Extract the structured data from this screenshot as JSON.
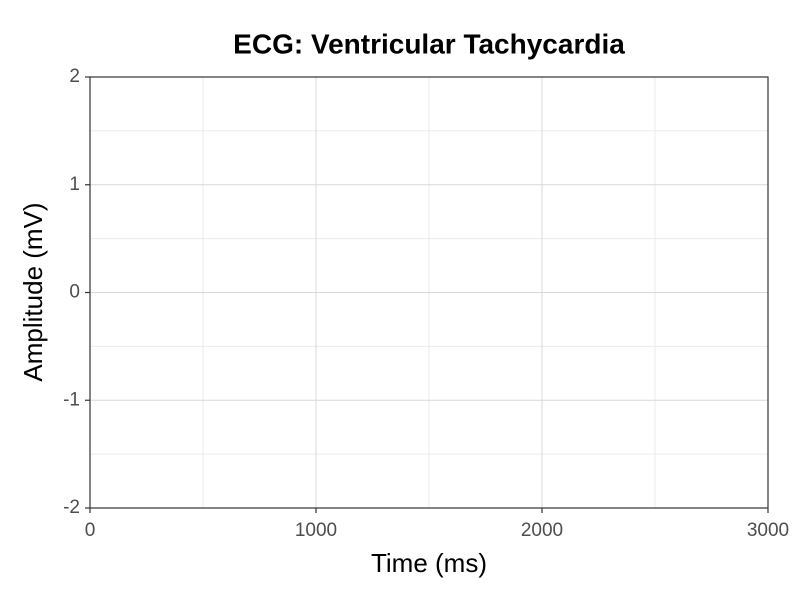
{
  "chart_data": {
    "type": "line",
    "title": "ECG: Ventricular Tachycardia",
    "x_label": "Time (ms)",
    "y_label": "Amplitude (mV)",
    "xlim": [
      0,
      3000
    ],
    "xticks": [
      0,
      1000,
      2000,
      3000
    ],
    "ylim": [
      -2,
      2
    ],
    "yticks": [
      -2,
      -1,
      0,
      1,
      2
    ],
    "grid": true
  }
}
